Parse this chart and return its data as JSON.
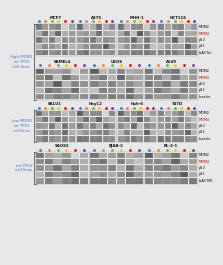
{
  "bg_color": "#e8e8e8",
  "fig_width": 2.0,
  "fig_height": 2.45,
  "sections": [
    {
      "label": "High MDM2\nwt TP53\nCell lines",
      "label_color": "#4472c4",
      "rows": [
        {
          "cell_lines": [
            "MCF7",
            "A375",
            "MHH-1",
            "HCT116"
          ],
          "proteins": [
            "MDM2",
            "MDM4",
            "p53",
            "p21",
            "b-ACTin"
          ],
          "protein_colors": [
            "#000000",
            "#c00000",
            "#000000",
            "#000000",
            "#000000"
          ]
        },
        {
          "cell_lines": [
            "SKMEL4",
            "U2OS",
            "A549"
          ],
          "proteins": [
            "MDM2",
            "MDM4",
            "p53",
            "p21",
            "b-actin"
          ],
          "protein_colors": [
            "#000000",
            "#c00000",
            "#000000",
            "#000000",
            "#000000"
          ]
        }
      ]
    },
    {
      "label": "Low MDM2\nwt TP53\ncell lines",
      "label_color": "#4472c4",
      "rows": [
        {
          "cell_lines": [
            "SKLU1",
            "HeyC2",
            "Huh-6",
            "T47D"
          ],
          "proteins": [
            "MDM2",
            "MDM4",
            "p53",
            "p21",
            "b-actin"
          ],
          "protein_colors": [
            "#000000",
            "#c00000",
            "#000000",
            "#000000",
            "#000000"
          ]
        }
      ]
    },
    {
      "label": "mt TP53\ncell lines",
      "label_color": "#4472c4",
      "rows": [
        {
          "cell_lines": [
            "SAOS2",
            "BJAB-2",
            "BL-2-1"
          ],
          "proteins": [
            "MDM2",
            "MDM4",
            "p53",
            "p21",
            "b-ACTIN"
          ],
          "protein_colors": [
            "#000000",
            "#c00000",
            "#000000",
            "#000000",
            "#000000"
          ]
        }
      ]
    }
  ],
  "lane_dot_colors": [
    [
      "#4472c4",
      "#ed7d31",
      "#70ad47",
      "#ffc000",
      "#ff0000",
      "#7030a0"
    ],
    [
      "#4472c4",
      "#ed7d31",
      "#70ad47",
      "#ffc000",
      "#ff0000",
      "#7030a0"
    ],
    [
      "#4472c4",
      "#ed7d31",
      "#70ad47",
      "#ffc000",
      "#ff0000",
      "#7030a0"
    ],
    [
      "#4472c4",
      "#ed7d31",
      "#70ad47",
      "#ffc000",
      "#ff0000",
      "#7030a0"
    ]
  ],
  "n_lanes": 6,
  "n_proteins": 5,
  "panel_bg": "#f0f0f0",
  "band_bg": "#e0e0e0",
  "band_dark": "#505050",
  "band_mid": "#888888",
  "band_light": "#b8b8b8"
}
